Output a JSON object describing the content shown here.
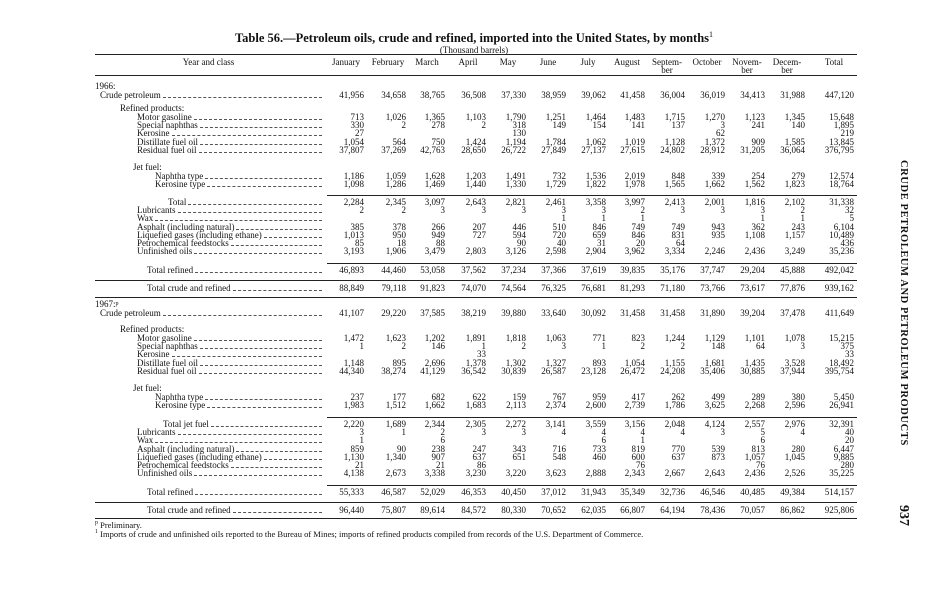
{
  "header": {
    "title": "Table 56.—Petroleum oils, crude and refined, imported into the United States, by months",
    "title_note": "1",
    "unit": "(Thousand barrels)"
  },
  "table": {
    "columns": [
      "Year and class",
      "January",
      "February",
      "March",
      "April",
      "May",
      "June",
      "July",
      "August",
      "Septem- ber",
      "October",
      "Novem- ber",
      "Decem- ber",
      "Total"
    ],
    "rows": [
      {
        "label": "1966:"
      },
      {
        "label": "Crude petroleum",
        "cells": [
          "41,956",
          "34,658",
          "38,765",
          "36,508",
          "37,330",
          "38,959",
          "39,062",
          "41,458",
          "36,004",
          "36,019",
          "34,413",
          "31,988",
          "447,120"
        ]
      },
      {
        "label": "Refined products:"
      },
      {
        "label": "Motor gasoline",
        "cells": [
          "713",
          "1,026",
          "1,365",
          "1,103",
          "1,790",
          "1,251",
          "1,464",
          "1,483",
          "1,715",
          "1,270",
          "1,123",
          "1,345",
          "15,648"
        ]
      },
      {
        "label": "Special naphthas",
        "cells": [
          "330",
          "2",
          "278",
          "2",
          "318",
          "149",
          "154",
          "141",
          "137",
          "3",
          "241",
          "140",
          "1,895"
        ]
      },
      {
        "label": "Kerosine",
        "cells": [
          "27",
          null,
          null,
          null,
          "130",
          null,
          null,
          null,
          null,
          "62",
          null,
          null,
          "219"
        ]
      },
      {
        "label": "Distillate fuel oil",
        "cells": [
          "1,054",
          "564",
          "750",
          "1,424",
          "1,194",
          "1,784",
          "1,062",
          "1,019",
          "1,128",
          "1,372",
          "909",
          "1,585",
          "13,845"
        ]
      },
      {
        "label": "Residual fuel oil",
        "cells": [
          "37,807",
          "37,269",
          "42,763",
          "28,650",
          "26,722",
          "27,849",
          "27,137",
          "27,615",
          "24,802",
          "28,912",
          "31,205",
          "36,064",
          "376,795"
        ]
      },
      {
        "label": "Jet fuel:"
      },
      {
        "label": "Naphtha type",
        "cells": [
          "1,186",
          "1,059",
          "1,628",
          "1,203",
          "1,491",
          "732",
          "1,536",
          "2,019",
          "848",
          "339",
          "254",
          "279",
          "12,574"
        ]
      },
      {
        "label": "Kerosine type",
        "cells": [
          "1,098",
          "1,286",
          "1,469",
          "1,440",
          "1,330",
          "1,729",
          "1,822",
          "1,978",
          "1,565",
          "1,662",
          "1,562",
          "1,823",
          "18,764"
        ]
      },
      {
        "label": "Total",
        "cells": [
          "2,284",
          "2,345",
          "3,097",
          "2,643",
          "2,821",
          "2,461",
          "3,358",
          "3,997",
          "2,413",
          "2,001",
          "1,816",
          "2,102",
          "31,338"
        ]
      },
      {
        "label": "Lubricants",
        "cells": [
          "2",
          "2",
          "3",
          "3",
          "3",
          "3",
          "3",
          "2",
          "3",
          "3",
          "3",
          "2",
          "32"
        ]
      },
      {
        "label": "Wax",
        "cells": [
          null,
          null,
          null,
          null,
          null,
          "1",
          "1",
          "1",
          null,
          null,
          "1",
          "1",
          "5"
        ]
      },
      {
        "label": "Asphalt (including natural)",
        "cells": [
          "385",
          "378",
          "266",
          "207",
          "446",
          "510",
          "846",
          "749",
          "749",
          "943",
          "362",
          "243",
          "6,104"
        ]
      },
      {
        "label": "Liquefied gases (including ethane)",
        "cells": [
          "1,013",
          "950",
          "949",
          "727",
          "594",
          "720",
          "659",
          "846",
          "831",
          "935",
          "1,108",
          "1,157",
          "10,489"
        ]
      },
      {
        "label": "Petrochemical feedstocks",
        "cells": [
          "85",
          "18",
          "88",
          null,
          "90",
          "40",
          "31",
          "20",
          "64",
          null,
          null,
          null,
          "436"
        ]
      },
      {
        "label": "Unfinished oils",
        "cells": [
          "3,193",
          "1,906",
          "3,479",
          "2,803",
          "3,126",
          "2,598",
          "2,904",
          "3,962",
          "3,334",
          "2,246",
          "2,436",
          "3,249",
          "35,236"
        ]
      },
      {
        "label": "Total refined",
        "cells": [
          "46,893",
          "44,460",
          "53,058",
          "37,562",
          "37,234",
          "37,366",
          "37,619",
          "39,835",
          "35,176",
          "37,747",
          "29,204",
          "45,888",
          "492,042"
        ]
      },
      {
        "label": "Total crude and refined",
        "cells": [
          "88,849",
          "79,118",
          "91,823",
          "74,070",
          "74,564",
          "76,325",
          "76,681",
          "81,293",
          "71,180",
          "73,766",
          "73,617",
          "77,876",
          "939,162"
        ]
      },
      {
        "label": "1967:",
        "note": "p"
      },
      {
        "label": "Crude petroleum",
        "cells": [
          "41,107",
          "29,220",
          "37,585",
          "38,219",
          "39,880",
          "33,640",
          "30,092",
          "31,458",
          "31,458",
          "31,890",
          "39,204",
          "37,478",
          "411,649"
        ]
      },
      {
        "label": "Refined products:"
      },
      {
        "label": "Motor gasoline",
        "cells": [
          "1,472",
          "1,623",
          "1,202",
          "1,891",
          "1,818",
          "1,063",
          "771",
          "823",
          "1,244",
          "1,129",
          "1,101",
          "1,078",
          "15,215"
        ]
      },
      {
        "label": "Special naphthas",
        "cells": [
          "1",
          "2",
          "146",
          "1",
          "2",
          "3",
          "1",
          "2",
          "2",
          "148",
          "64",
          "3",
          "375"
        ]
      },
      {
        "label": "Kerosine",
        "cells": [
          null,
          null,
          null,
          "33",
          null,
          null,
          null,
          null,
          null,
          null,
          null,
          null,
          "33"
        ]
      },
      {
        "label": "Distillate fuel oil",
        "cells": [
          "1,148",
          "895",
          "2,696",
          "1,378",
          "1,302",
          "1,327",
          "893",
          "1,054",
          "1,155",
          "1,681",
          "1,435",
          "3,528",
          "18,492"
        ]
      },
      {
        "label": "Residual fuel oil",
        "cells": [
          "44,340",
          "38,274",
          "41,129",
          "36,542",
          "30,839",
          "26,587",
          "23,128",
          "26,472",
          "24,208",
          "35,406",
          "30,885",
          "37,944",
          "395,754"
        ]
      },
      {
        "label": "Jet fuel:"
      },
      {
        "label": "Naphtha type",
        "cells": [
          "237",
          "177",
          "682",
          "622",
          "159",
          "767",
          "959",
          "417",
          "262",
          "499",
          "289",
          "380",
          "5,450"
        ]
      },
      {
        "label": "Kerosine type",
        "cells": [
          "1,983",
          "1,512",
          "1,662",
          "1,683",
          "2,113",
          "2,374",
          "2,600",
          "2,739",
          "1,786",
          "3,625",
          "2,268",
          "2,596",
          "26,941"
        ]
      },
      {
        "label": "Total jet fuel",
        "cells": [
          "2,220",
          "1,689",
          "2,344",
          "2,305",
          "2,272",
          "3,141",
          "3,559",
          "3,156",
          "2,048",
          "4,124",
          "2,557",
          "2,976",
          "32,391"
        ]
      },
      {
        "label": "Lubricants",
        "cells": [
          "3",
          "1",
          "2",
          "3",
          "3",
          "4",
          "4",
          "4",
          "4",
          "3",
          "5",
          "4",
          "40"
        ]
      },
      {
        "label": "Wax",
        "cells": [
          "1",
          null,
          "6",
          null,
          null,
          null,
          "6",
          "1",
          null,
          null,
          "6",
          null,
          "20"
        ]
      },
      {
        "label": "Asphalt (including natural)",
        "cells": [
          "859",
          "90",
          "238",
          "247",
          "343",
          "716",
          "733",
          "819",
          "770",
          "539",
          "813",
          "280",
          "6,447"
        ]
      },
      {
        "label": "Liquefied gases (including ethane)",
        "cells": [
          "1,130",
          "1,340",
          "907",
          "637",
          "651",
          "548",
          "460",
          "600",
          "637",
          "873",
          "1,057",
          "1,045",
          "9,885"
        ]
      },
      {
        "label": "Petrochemical feedstocks",
        "cells": [
          "21",
          null,
          "21",
          "86",
          null,
          null,
          null,
          "76",
          null,
          null,
          "76",
          null,
          "280"
        ]
      },
      {
        "label": "Unfinished oils",
        "cells": [
          "4,138",
          "2,673",
          "3,338",
          "3,230",
          "3,220",
          "3,623",
          "2,888",
          "2,343",
          "2,667",
          "2,643",
          "2,436",
          "2,526",
          "35,225"
        ]
      },
      {
        "label": "Total refined",
        "cells": [
          "55,333",
          "46,587",
          "52,029",
          "46,353",
          "40,450",
          "37,012",
          "31,943",
          "35,349",
          "32,736",
          "46,546",
          "40,485",
          "49,384",
          "514,157"
        ]
      },
      {
        "label": "Total crude and refined",
        "cells": [
          "96,440",
          "75,807",
          "89,614",
          "84,572",
          "80,330",
          "70,652",
          "62,035",
          "66,807",
          "64,194",
          "78,436",
          "70,057",
          "86,862",
          "925,806"
        ]
      }
    ]
  },
  "footnotes": [
    {
      "mark": "p",
      "text": "Preliminary."
    },
    {
      "mark": "1",
      "text": "Imports of crude and unfinished oils reported to the Bureau of Mines; imports of refined products compiled from records of the U.S. Department of Commerce."
    }
  ],
  "side": {
    "running_head": "CRUDE PETROLEUM AND PETROLEUM PRODUCTS",
    "page_number": "937"
  }
}
